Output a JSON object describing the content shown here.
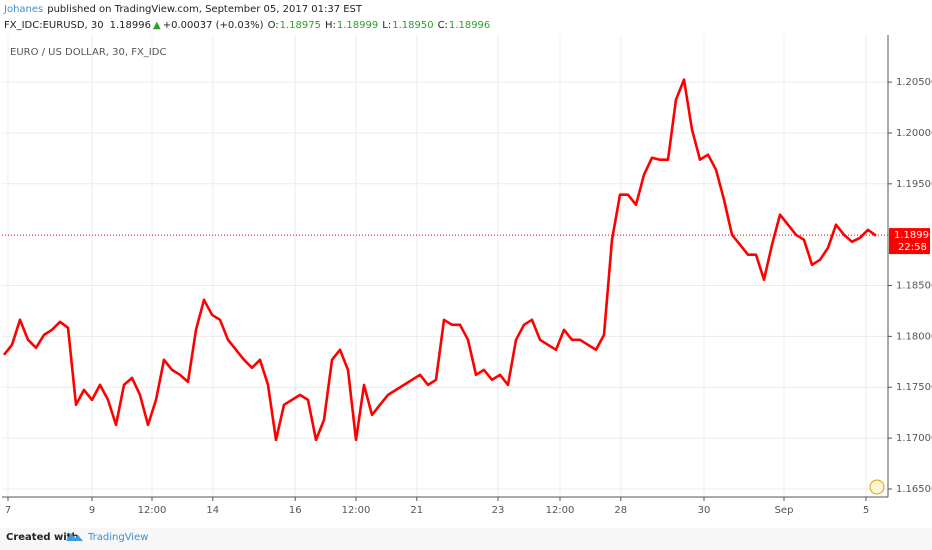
{
  "header": {
    "author": "Johanes",
    "published": "published on TradingView.com, September 05, 2017 01:37 EST",
    "symbol": "FX_IDC:EURUSD, 30",
    "price": "1.18996",
    "arrow": "▲",
    "change": "+0.00037 (+0.03%)",
    "ohlc": [
      {
        "key": "O:",
        "value": "1.18975"
      },
      {
        "key": "H:",
        "value": "1.18999"
      },
      {
        "key": "L:",
        "value": "1.18950"
      },
      {
        "key": "C:",
        "value": "1.18996"
      }
    ]
  },
  "chart_data": {
    "type": "line",
    "title": "EURO / US DOLLAR, 30, FX_IDC",
    "series": [
      {
        "name": "EURUSD",
        "color": "#ff0000",
        "values": [
          1.17819,
          1.17917,
          1.18163,
          1.17966,
          1.17888,
          1.18015,
          1.18065,
          1.18143,
          1.18084,
          1.17327,
          1.17474,
          1.17376,
          1.17523,
          1.17376,
          1.1713,
          1.17523,
          1.17592,
          1.17425,
          1.1713,
          1.17376,
          1.1777,
          1.17671,
          1.17622,
          1.17553,
          1.18065,
          1.1836,
          1.18212,
          1.18163,
          1.17966,
          1.17868,
          1.1777,
          1.17691,
          1.1777,
          1.17523,
          1.16982,
          1.17327,
          1.17376,
          1.17425,
          1.17376,
          1.16982,
          1.17179,
          1.1777,
          1.17868,
          1.17671,
          1.16982,
          1.17523,
          1.17228,
          1.17327,
          1.17425,
          1.17474,
          1.17523,
          1.17573,
          1.17622,
          1.17523,
          1.17573,
          1.18163,
          1.18114,
          1.18114,
          1.17966,
          1.17622,
          1.17671,
          1.17573,
          1.17622,
          1.17523,
          1.17966,
          1.18114,
          1.18163,
          1.17966,
          1.17917,
          1.17868,
          1.18065,
          1.17966,
          1.17966,
          1.17917,
          1.17868,
          1.18015,
          1.1895,
          1.19393,
          1.19393,
          1.19294,
          1.1959,
          1.19757,
          1.19737,
          1.19737,
          1.20328,
          1.20525,
          1.20033,
          1.19737,
          1.19786,
          1.19639,
          1.19344,
          1.18999,
          1.18901,
          1.18803,
          1.18803,
          1.18557,
          1.18901,
          1.19196,
          1.19098,
          1.18999,
          1.1895,
          1.18704,
          1.18753,
          1.18871,
          1.19098,
          1.18999,
          1.1893,
          1.18969,
          1.19048,
          1.1899
        ]
      }
    ],
    "xlim": [
      -0.25,
      110.5
    ],
    "xticks": [
      {
        "value": 0.5,
        "label": "7"
      },
      {
        "value": 11,
        "label": "9"
      },
      {
        "value": 18.5,
        "label": "12:00"
      },
      {
        "value": 26.1,
        "label": "14"
      },
      {
        "value": 36.4,
        "label": "16"
      },
      {
        "value": 44,
        "label": "12:00"
      },
      {
        "value": 51.6,
        "label": "21"
      },
      {
        "value": 61.75,
        "label": "23"
      },
      {
        "value": 69.5,
        "label": "12:00"
      },
      {
        "value": 77.1,
        "label": "28"
      },
      {
        "value": 87.5,
        "label": "30"
      },
      {
        "value": 97.5,
        "label": "Sep"
      },
      {
        "value": 107.75,
        "label": "5"
      }
    ],
    "ylim": [
      1.16421,
      1.20963
    ],
    "yticks": [
      {
        "value": 1.165,
        "label": "1.16500"
      },
      {
        "value": 1.17,
        "label": "1.17000"
      },
      {
        "value": 1.175,
        "label": "1.17500"
      },
      {
        "value": 1.18,
        "label": "1.18000"
      },
      {
        "value": 1.185,
        "label": "1.18500"
      },
      {
        "value": 1.195,
        "label": "1.19500"
      },
      {
        "value": 1.2,
        "label": "1.20000"
      },
      {
        "value": 1.205,
        "label": "1.20500"
      }
    ],
    "grid": true,
    "last_price": 1.18996,
    "countdown": "22:58"
  },
  "footer": {
    "created": "Created with",
    "brand": "TradingView"
  }
}
